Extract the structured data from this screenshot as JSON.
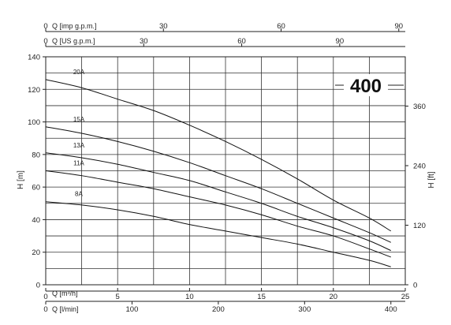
{
  "chart_data": {
    "type": "line",
    "title": "",
    "badge": "400",
    "xlabel": "Q [m³/h]",
    "ylabel": "H [m]",
    "y2label": "H [ft]",
    "x_secondary_label": "Q [l/min]",
    "top_axis_1_label": "Q [imp g.p.m.]",
    "top_axis_2_label": "Q [US g.p.m.]",
    "xlim": [
      0,
      25
    ],
    "ylim": [
      0,
      140
    ],
    "grid": true,
    "x_ticks": [
      0,
      5,
      10,
      15,
      20,
      25
    ],
    "x_tick_labels": [
      "0",
      "5",
      "10",
      "15",
      "20",
      "25"
    ],
    "y_ticks": [
      0,
      20,
      40,
      60,
      80,
      100,
      120,
      140
    ],
    "y_tick_labels": [
      "0",
      "20",
      "40",
      "60",
      "80",
      "100",
      "120",
      "140"
    ],
    "y2_ticks_ft": [
      0,
      120,
      240,
      360
    ],
    "y2_tick_labels": [
      "0",
      "120",
      "240",
      "360"
    ],
    "lmin_ticks": [
      0,
      100,
      200,
      300,
      400
    ],
    "lmin_tick_labels": [
      "0",
      "100",
      "200",
      "300",
      "400"
    ],
    "imp_ticks": [
      0,
      30,
      60,
      90
    ],
    "imp_tick_labels": [
      "0",
      "30",
      "60",
      "90"
    ],
    "us_ticks": [
      0,
      30,
      60,
      90
    ],
    "us_tick_labels": [
      "0",
      "30",
      "60",
      "90"
    ],
    "series": [
      {
        "name": "20A",
        "x": [
          0,
          2.5,
          5,
          7.5,
          10,
          12.5,
          15,
          17.5,
          20,
          22.5,
          24
        ],
        "y": [
          126,
          121,
          114,
          107,
          98,
          88,
          77,
          65,
          52,
          41,
          33
        ]
      },
      {
        "name": "15A",
        "x": [
          0,
          2.5,
          5,
          7.5,
          10,
          12.5,
          15,
          17.5,
          20,
          22.5,
          24
        ],
        "y": [
          97,
          93,
          88,
          82,
          75,
          67,
          59,
          50,
          41,
          32,
          26
        ]
      },
      {
        "name": "13A",
        "x": [
          0,
          2.5,
          5,
          7.5,
          10,
          12.5,
          15,
          17.5,
          20,
          22.5,
          24
        ],
        "y": [
          81,
          78,
          74,
          69,
          64,
          57,
          50,
          42,
          35,
          27,
          21
        ]
      },
      {
        "name": "11A",
        "x": [
          0,
          2.5,
          5,
          7.5,
          10,
          12.5,
          15,
          17.5,
          20,
          22.5,
          24
        ],
        "y": [
          70,
          67,
          63,
          59,
          54,
          49,
          43,
          36,
          30,
          22,
          17
        ]
      },
      {
        "name": "8A",
        "x": [
          0,
          2.5,
          5,
          7.5,
          10,
          12.5,
          15,
          17.5,
          20,
          22.5,
          24
        ],
        "y": [
          51,
          49,
          46,
          42,
          37,
          33,
          29,
          25,
          20,
          15,
          11
        ]
      }
    ]
  }
}
